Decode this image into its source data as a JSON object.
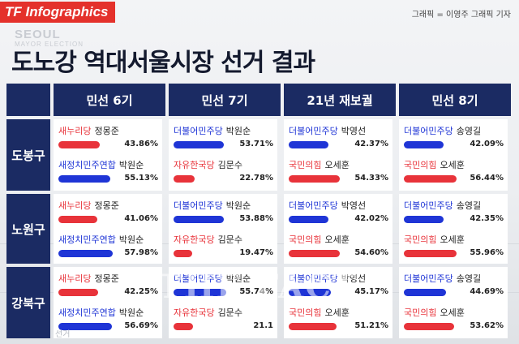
{
  "header": {
    "logo": "TF Infographics",
    "credit": "그래픽 = 이영주 그래픽 기자",
    "watermark_top": "SEOUL",
    "watermark_sub": "MAYOR ELECTION",
    "title": "도노강 역대서울시장 선거 결과"
  },
  "colors": {
    "blue_party": "#1f35d6",
    "red_party": "#e8333a",
    "header_bg": "#1b2b63"
  },
  "watermark": {
    "main": "THE FACT",
    "sub": "TF.CO.KR"
  },
  "background_text": "선거",
  "chart_data": {
    "type": "table",
    "title": "도노강 역대서울시장 선거 결과",
    "columns": [
      "민선 6기",
      "민선 7기",
      "21년 재보궐",
      "민선 8기"
    ],
    "rows": [
      {
        "label": "도봉구",
        "cells": [
          [
            {
              "party": "새누리당",
              "candidate": "정몽준",
              "pct": "43.86%",
              "value": 43.86,
              "color": "red"
            },
            {
              "party": "새정치민주연합",
              "candidate": "박원순",
              "pct": "55.13%",
              "value": 55.13,
              "color": "blue"
            }
          ],
          [
            {
              "party": "더불어민주당",
              "candidate": "박원순",
              "pct": "53.71%",
              "value": 53.71,
              "color": "blue"
            },
            {
              "party": "자유한국당",
              "candidate": "김문수",
              "pct": "22.78%",
              "value": 22.78,
              "color": "red"
            }
          ],
          [
            {
              "party": "더불어민주당",
              "candidate": "박영선",
              "pct": "42.37%",
              "value": 42.37,
              "color": "blue"
            },
            {
              "party": "국민의힘",
              "candidate": "오세훈",
              "pct": "54.33%",
              "value": 54.33,
              "color": "red"
            }
          ],
          [
            {
              "party": "더불어민주당",
              "candidate": "송영길",
              "pct": "42.09%",
              "value": 42.09,
              "color": "blue"
            },
            {
              "party": "국민의힘",
              "candidate": "오세훈",
              "pct": "56.44%",
              "value": 56.44,
              "color": "red"
            }
          ]
        ]
      },
      {
        "label": "노원구",
        "cells": [
          [
            {
              "party": "새누리당",
              "candidate": "정몽준",
              "pct": "41.06%",
              "value": 41.06,
              "color": "red"
            },
            {
              "party": "새정치민주연합",
              "candidate": "박원순",
              "pct": "57.98%",
              "value": 57.98,
              "color": "blue"
            }
          ],
          [
            {
              "party": "더불어민주당",
              "candidate": "박원순",
              "pct": "53.88%",
              "value": 53.88,
              "color": "blue"
            },
            {
              "party": "자유한국당",
              "candidate": "김문수",
              "pct": "19.47%",
              "value": 19.47,
              "color": "red"
            }
          ],
          [
            {
              "party": "더불어민주당",
              "candidate": "박영선",
              "pct": "42.02%",
              "value": 42.02,
              "color": "blue"
            },
            {
              "party": "국민의힘",
              "candidate": "오세훈",
              "pct": "54.60%",
              "value": 54.6,
              "color": "red"
            }
          ],
          [
            {
              "party": "더불어민주당",
              "candidate": "송영길",
              "pct": "42.35%",
              "value": 42.35,
              "color": "blue"
            },
            {
              "party": "국민의힘",
              "candidate": "오세훈",
              "pct": "55.96%",
              "value": 55.96,
              "color": "red"
            }
          ]
        ]
      },
      {
        "label": "강북구",
        "cells": [
          [
            {
              "party": "새누리당",
              "candidate": "정몽준",
              "pct": "42.25%",
              "value": 42.25,
              "color": "red"
            },
            {
              "party": "새정치민주연합",
              "candidate": "박원순",
              "pct": "56.69%",
              "value": 56.69,
              "color": "blue"
            }
          ],
          [
            {
              "party": "더불어민주당",
              "candidate": "박원순",
              "pct": "55.74%",
              "value": 55.74,
              "color": "blue"
            },
            {
              "party": "자유한국당",
              "candidate": "김문수",
              "pct": "21.1",
              "value": 21.1,
              "color": "red"
            }
          ],
          [
            {
              "party": "더불어민주당",
              "candidate": "박영선",
              "pct": "45.17%",
              "value": 45.17,
              "color": "blue"
            },
            {
              "party": "국민의힘",
              "candidate": "오세훈",
              "pct": "51.21%",
              "value": 51.21,
              "color": "red"
            }
          ],
          [
            {
              "party": "더불어민주당",
              "candidate": "송영길",
              "pct": "44.69%",
              "value": 44.69,
              "color": "blue"
            },
            {
              "party": "국민의힘",
              "candidate": "오세훈",
              "pct": "53.62%",
              "value": 53.62,
              "color": "red"
            }
          ]
        ]
      }
    ]
  }
}
